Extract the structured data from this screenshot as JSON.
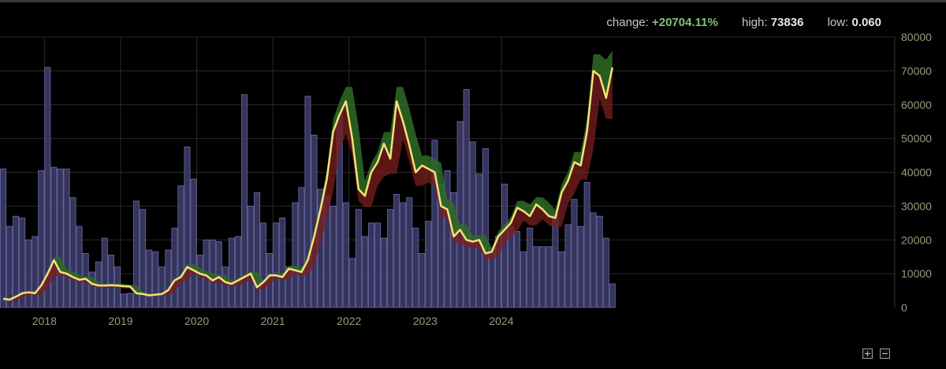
{
  "stats": {
    "change_label": "change:",
    "change_value": "+20704.11%",
    "high_label": "high:",
    "high_value": "73836",
    "low_label": "low:",
    "low_value": "0.060"
  },
  "controls": {
    "zoom_in": "+",
    "zoom_out": "−"
  },
  "colors": {
    "price_line": "#f2e27a",
    "band_up": "#2f6b24",
    "band_down": "#7a1e1e",
    "volume_bar": "#3b3a66",
    "volume_bar_stroke": "#6b6aa8",
    "grid": "#2a2a2a",
    "axis_text": "#9a9a7a"
  },
  "chart_data": [
    {
      "type": "line",
      "series": [
        {
          "values": [
            2600,
            2300,
            3200,
            4200,
            4500,
            4200,
            6500,
            10000,
            14000,
            10500,
            10000,
            9000,
            8200,
            8500,
            7000,
            6500,
            6500,
            6600,
            6500,
            6300,
            6200,
            4200,
            4000,
            3600,
            3800,
            4000,
            5100,
            8000,
            9000,
            12000,
            11000,
            10000,
            9500,
            8000,
            9000,
            7500,
            7000,
            8000,
            9000,
            10000,
            6000,
            7500,
            9500,
            9500,
            9000,
            11500,
            11000,
            10500,
            14000,
            21000,
            29000,
            38000,
            52000,
            57000,
            61000,
            50000,
            35000,
            33000,
            40000,
            43000,
            48500,
            44000,
            61000,
            55000,
            48000,
            40000,
            42000,
            41000,
            40000,
            30000,
            29000,
            21000,
            23000,
            20000,
            19500,
            20000,
            16000,
            16500,
            21000,
            23000,
            25000,
            29500,
            28500,
            27000,
            30500,
            29000,
            27000,
            26500,
            34000,
            37500,
            43000,
            42000,
            52000,
            70000,
            68500,
            62000,
            71000
          ]
        }
      ],
      "x_ticks": [
        "2018",
        "2019",
        "2020",
        "2021",
        "2022",
        "2023",
        "2024"
      ],
      "x_start": "2017-06",
      "x_end": "2024-05",
      "y_ticks": [
        "0",
        "10000",
        "20000",
        "30000",
        "40000",
        "50000",
        "60000",
        "70000",
        "80000"
      ],
      "ylim": [
        0,
        80000
      ],
      "grid": true
    },
    {
      "type": "bar",
      "series": [
        {
          "values": [
            41000,
            24000,
            27000,
            26500,
            20000,
            21000,
            40500,
            71000,
            41500,
            41000,
            41000,
            32500,
            24000,
            16000,
            10500,
            13500,
            20500,
            15500,
            12000,
            4000,
            4200,
            31500,
            29000,
            17000,
            16500,
            12000,
            17000,
            23500,
            36000,
            47500,
            38000,
            15500,
            20000,
            20000,
            19500,
            12000,
            20500,
            21000,
            63000,
            30000,
            34000,
            25000,
            16000,
            25000,
            26500,
            12000,
            31000,
            35500,
            62500,
            51000,
            35000,
            33000,
            30000,
            57500,
            31000,
            14500,
            29000,
            21000,
            25000,
            25000,
            20500,
            29000,
            33500,
            31000,
            32500,
            23500,
            16000,
            25500,
            49500,
            36500,
            40500,
            34000,
            55000,
            64500,
            49000,
            39500,
            47000,
            17500,
            21000,
            36500,
            24000,
            22500,
            16500,
            23500,
            18000,
            18000,
            18000,
            27500,
            16500,
            24500,
            32000,
            24000,
            37000,
            28000,
            27000,
            20500,
            7000
          ]
        }
      ]
    }
  ]
}
